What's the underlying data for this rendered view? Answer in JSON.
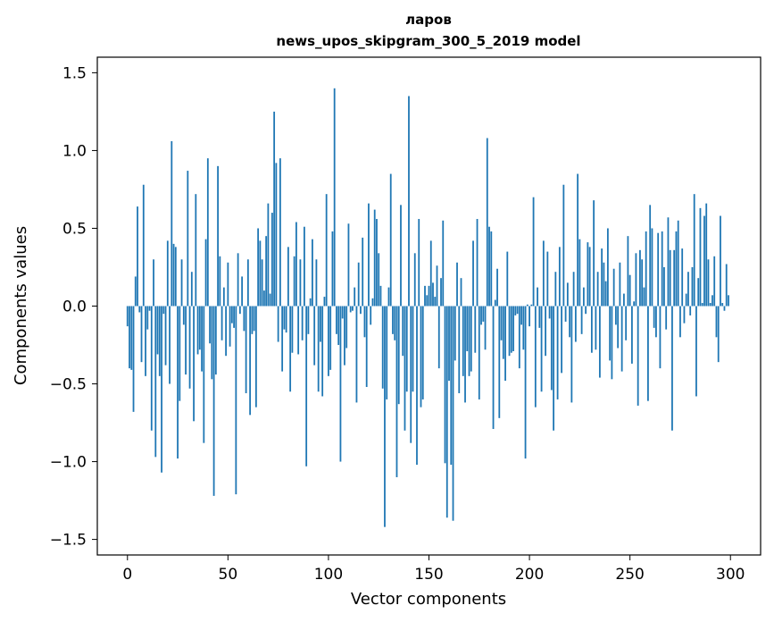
{
  "chart_data": {
    "type": "bar",
    "title_line1": "ларов",
    "title_line2": "news_upos_skipgram_300_5_2019 model",
    "xlabel": "Vector components",
    "ylabel": "Components values",
    "xlim": [
      -15,
      315
    ],
    "ylim": [
      -1.6,
      1.6
    ],
    "xticks": [
      0,
      50,
      100,
      150,
      200,
      250,
      300
    ],
    "xtick_labels": [
      "0",
      "50",
      "100",
      "150",
      "200",
      "250",
      "300"
    ],
    "yticks": [
      -1.5,
      -1.0,
      -0.5,
      0.0,
      0.5,
      1.0,
      1.5
    ],
    "ytick_labels": [
      "−1.5",
      "−1.0",
      "−0.5",
      "0.0",
      "0.5",
      "1.0",
      "1.5"
    ],
    "bar_color": "#1f77b4",
    "values": [
      -0.13,
      -0.4,
      -0.41,
      -0.68,
      0.19,
      0.64,
      -0.04,
      -0.36,
      0.78,
      -0.45,
      -0.15,
      -0.03,
      -0.8,
      0.3,
      -0.97,
      -0.31,
      -0.45,
      -1.07,
      -0.05,
      -0.38,
      0.42,
      -0.5,
      1.06,
      0.4,
      0.38,
      -0.98,
      -0.61,
      0.3,
      -0.12,
      -0.44,
      0.87,
      -0.53,
      0.22,
      -0.74,
      0.72,
      -0.31,
      -0.28,
      -0.42,
      -0.88,
      0.43,
      0.95,
      -0.24,
      -0.47,
      -1.22,
      -0.44,
      0.9,
      0.32,
      -0.22,
      0.12,
      -0.32,
      0.28,
      -0.26,
      -0.11,
      -0.14,
      -1.21,
      0.34,
      -0.05,
      0.19,
      -0.16,
      -0.56,
      0.3,
      -0.7,
      -0.18,
      -0.16,
      -0.65,
      0.5,
      0.42,
      0.3,
      0.1,
      0.45,
      0.66,
      0.08,
      0.6,
      1.25,
      0.92,
      -0.23,
      0.95,
      -0.42,
      -0.15,
      -0.17,
      0.38,
      -0.55,
      -0.3,
      0.32,
      0.54,
      -0.31,
      0.3,
      -0.22,
      0.51,
      -1.03,
      -0.18,
      0.05,
      0.43,
      -0.38,
      0.3,
      -0.55,
      -0.23,
      -0.58,
      0.06,
      0.72,
      -0.45,
      -0.41,
      0.48,
      1.4,
      -0.18,
      -0.25,
      -1.0,
      -0.08,
      -0.38,
      -0.27,
      0.53,
      -0.04,
      -0.03,
      0.12,
      -0.62,
      0.28,
      -0.05,
      0.44,
      -0.2,
      -0.52,
      0.66,
      -0.12,
      0.05,
      0.62,
      0.56,
      0.34,
      0.13,
      -0.53,
      -1.42,
      -0.6,
      0.12,
      0.85,
      -0.18,
      -0.22,
      -1.1,
      -0.63,
      0.65,
      -0.32,
      -0.8,
      -0.55,
      1.35,
      -0.88,
      -0.55,
      0.34,
      -1.02,
      0.56,
      -0.65,
      -0.6,
      0.13,
      0.07,
      0.13,
      0.42,
      0.15,
      0.06,
      0.26,
      -0.4,
      0.18,
      0.55,
      -1.01,
      -1.36,
      -0.48,
      -1.02,
      -1.38,
      -0.35,
      0.28,
      -0.56,
      0.18,
      -0.45,
      -0.62,
      -0.29,
      -0.45,
      -0.42,
      0.42,
      -0.3,
      0.56,
      -0.6,
      -0.12,
      -0.1,
      -0.28,
      1.08,
      0.51,
      0.48,
      -0.79,
      0.04,
      0.24,
      -0.72,
      -0.22,
      -0.34,
      -0.48,
      0.35,
      -0.32,
      -0.3,
      -0.29,
      -0.06,
      -0.05,
      -0.4,
      -0.12,
      -0.28,
      -0.98,
      0.01,
      -0.13,
      0.01,
      0.7,
      -0.65,
      0.12,
      -0.14,
      -0.55,
      0.42,
      -0.32,
      0.35,
      -0.08,
      -0.54,
      -0.8,
      0.22,
      -0.6,
      0.38,
      -0.43,
      0.78,
      -0.1,
      0.15,
      -0.2,
      -0.62,
      0.22,
      -0.23,
      0.85,
      0.43,
      -0.18,
      0.12,
      -0.05,
      0.41,
      0.38,
      -0.3,
      0.68,
      -0.28,
      0.22,
      -0.46,
      0.37,
      0.28,
      0.16,
      0.5,
      -0.35,
      -0.47,
      0.24,
      -0.12,
      -0.27,
      0.28,
      -0.42,
      0.08,
      -0.22,
      0.45,
      0.2,
      -0.37,
      0.03,
      0.34,
      -0.64,
      0.36,
      0.3,
      0.12,
      0.48,
      -0.61,
      0.65,
      0.5,
      -0.14,
      -0.2,
      0.47,
      -0.4,
      0.48,
      0.25,
      -0.15,
      0.57,
      0.36,
      -0.8,
      0.36,
      0.48,
      0.55,
      -0.2,
      0.37,
      -0.11,
      0.08,
      0.22,
      -0.06,
      0.25,
      0.72,
      -0.58,
      0.18,
      0.63,
      0.02,
      0.58,
      0.66,
      0.3,
      0.02,
      0.07,
      0.32,
      -0.2,
      -0.36,
      0.58,
      0.02,
      -0.03,
      0.27,
      0.07
    ]
  }
}
